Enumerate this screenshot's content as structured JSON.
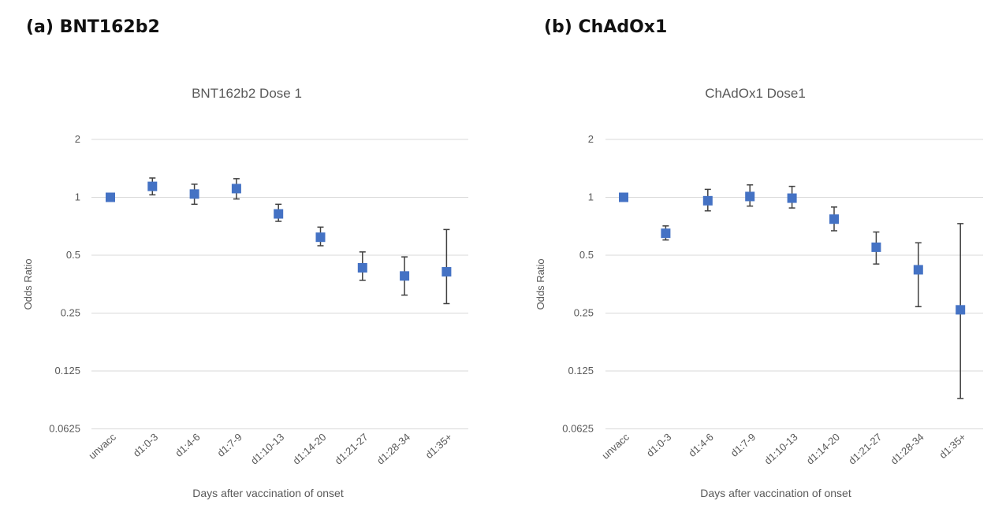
{
  "figure": {
    "panel_a_label": "(a) BNT162b2",
    "panel_b_label": "(b) ChAdOx1"
  },
  "colors": {
    "marker": "#4472C4",
    "errorbar": "#404040",
    "grid": "#d9d9d9",
    "text": "#595959"
  },
  "chart_data": [
    {
      "type": "scatter",
      "title": "BNT162b2 Dose 1",
      "xlabel": "Days after vaccination of onset",
      "ylabel": "Odds Ratio",
      "yscale": "log2",
      "ylim": [
        0.0625,
        2
      ],
      "yticks": [
        "2",
        "1",
        "0.5",
        "0.25",
        "0.125",
        "0.0625"
      ],
      "categories": [
        "unvacc",
        "d1:0-3",
        "d1:4-6",
        "d1:7-9",
        "d1:10-13",
        "d1:14-20",
        "d1:21-27",
        "d1:28-34",
        "d1:35+"
      ],
      "values": [
        1.0,
        1.14,
        1.04,
        1.11,
        0.82,
        0.62,
        0.43,
        0.39,
        0.41
      ],
      "lower": [
        1.0,
        1.03,
        0.92,
        0.98,
        0.75,
        0.56,
        0.37,
        0.31,
        0.28
      ],
      "upper": [
        1.0,
        1.26,
        1.17,
        1.25,
        0.92,
        0.7,
        0.52,
        0.49,
        0.68
      ]
    },
    {
      "type": "scatter",
      "title": "ChAdOx1 Dose1",
      "xlabel": "Days after vaccination of onset",
      "ylabel": "Odds Ratio",
      "yscale": "log2",
      "ylim": [
        0.0625,
        2
      ],
      "yticks": [
        "2",
        "1",
        "0.5",
        "0.25",
        "0.125",
        "0.0625"
      ],
      "categories": [
        "unvacc",
        "d1:0-3",
        "d1:4-6",
        "d1:7-9",
        "d1:10-13",
        "d1:14-20",
        "d1:21-27",
        "d1:28-34",
        "d1:35+"
      ],
      "values": [
        1.0,
        0.65,
        0.96,
        1.01,
        0.99,
        0.77,
        0.55,
        0.42,
        0.26
      ],
      "lower": [
        1.0,
        0.6,
        0.85,
        0.9,
        0.88,
        0.67,
        0.45,
        0.27,
        0.09
      ],
      "upper": [
        1.0,
        0.71,
        1.1,
        1.16,
        1.14,
        0.89,
        0.66,
        0.58,
        0.73
      ]
    }
  ]
}
